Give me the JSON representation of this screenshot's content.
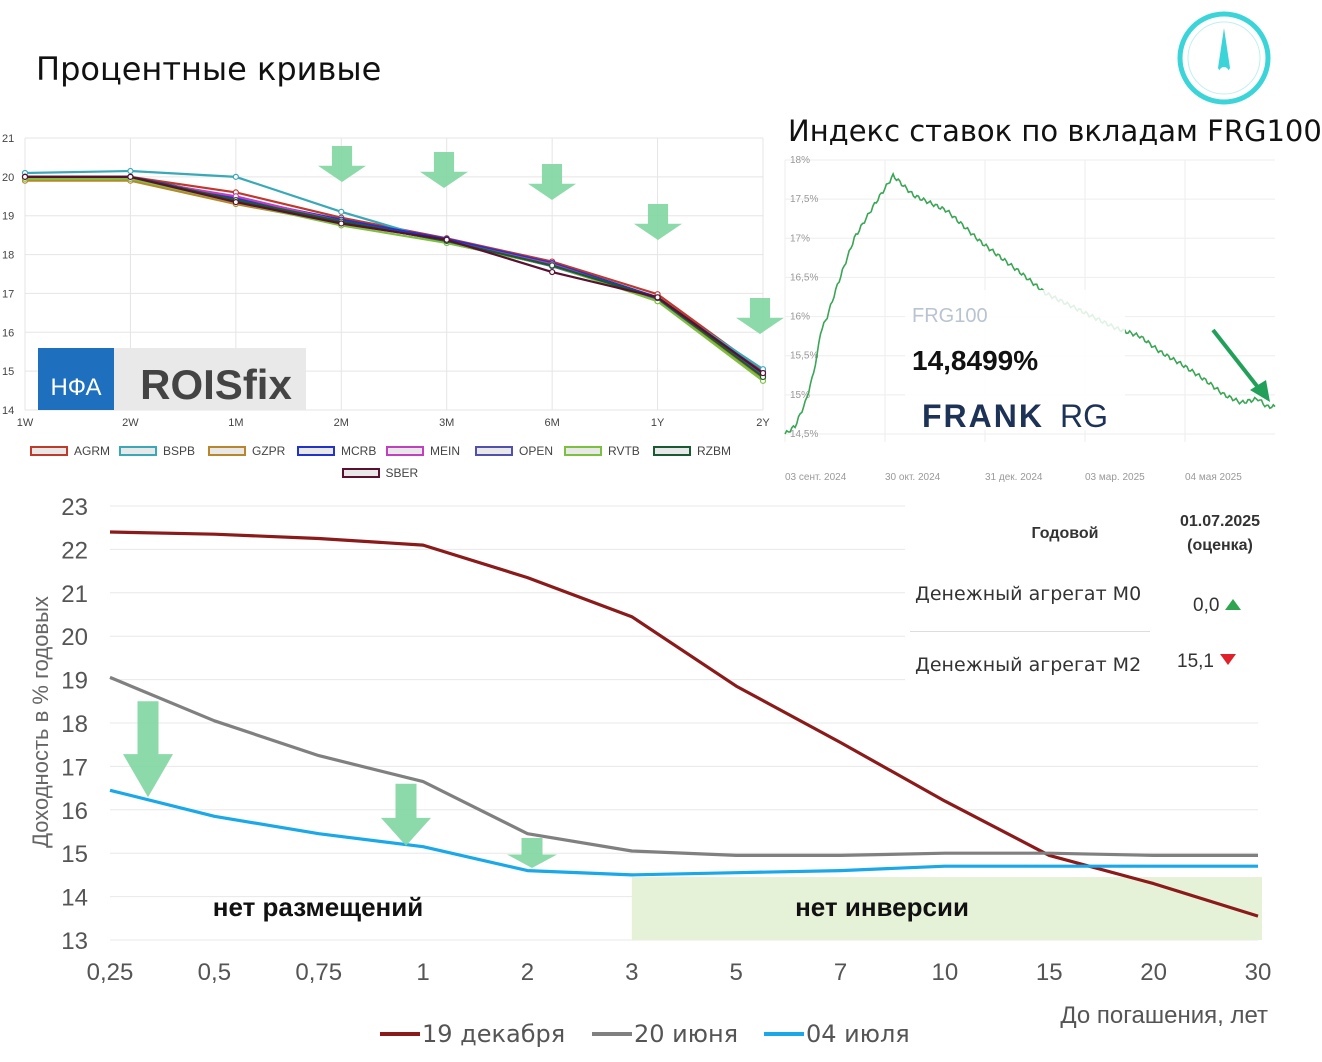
{
  "page_title": "Процентные кривые",
  "colors": {
    "down_arrow": "#7fd6a0",
    "highlight_area": "#e6f2d8",
    "frg_line": "#3aa655",
    "teal_icon": "#3ad4d9"
  },
  "icons": [
    "compass-needle-icon",
    "down-arrow-icon",
    "triangle-up-icon",
    "triangle-down-icon"
  ],
  "chart_data": [
    {
      "type": "line",
      "categories": [
        "1W",
        "2W",
        "1M",
        "2M",
        "3M",
        "6M",
        "1Y",
        "2Y"
      ],
      "ylim": [
        14,
        21
      ],
      "yticks": [
        "14",
        "15",
        "16",
        "17",
        "18",
        "19",
        "20",
        "21"
      ],
      "grid": true,
      "logo": {
        "nfa": "НФА",
        "rois": "ROISfix"
      },
      "series": [
        {
          "name": "AGRM",
          "color": "#c0392b",
          "values": [
            20.0,
            20.0,
            19.6,
            18.95,
            18.42,
            17.82,
            16.98,
            15.0
          ]
        },
        {
          "name": "BSPB",
          "color": "#39a8b8",
          "values": [
            20.1,
            20.15,
            20.0,
            19.1,
            18.3,
            17.72,
            16.85,
            15.05
          ]
        },
        {
          "name": "GZPR",
          "color": "#b8862b",
          "values": [
            19.9,
            19.9,
            19.3,
            18.8,
            18.38,
            17.75,
            16.8,
            14.82
          ]
        },
        {
          "name": "MCRB",
          "color": "#2233cc",
          "values": [
            20.0,
            20.0,
            19.45,
            18.9,
            18.4,
            17.78,
            16.9,
            14.95
          ]
        },
        {
          "name": "MEIN",
          "color": "#c040c0",
          "values": [
            20.0,
            19.95,
            19.5,
            18.85,
            18.35,
            17.75,
            16.85,
            14.9
          ]
        },
        {
          "name": "OPEN",
          "color": "#5050b0",
          "values": [
            20.0,
            20.0,
            19.4,
            18.85,
            18.35,
            17.7,
            16.85,
            14.9
          ]
        },
        {
          "name": "RVTB",
          "color": "#7cc040",
          "values": [
            19.95,
            19.95,
            19.35,
            18.75,
            18.3,
            17.72,
            16.8,
            14.75
          ]
        },
        {
          "name": "RZBM",
          "color": "#1a5a30",
          "values": [
            20.0,
            20.0,
            19.4,
            18.85,
            18.35,
            17.72,
            16.88,
            14.85
          ]
        },
        {
          "name": "SBER",
          "color": "#5a1030",
          "values": [
            20.0,
            20.0,
            19.35,
            18.8,
            18.38,
            17.55,
            16.9,
            14.95
          ]
        }
      ]
    },
    {
      "type": "line",
      "title": "Индекс ставок по вкладам FRG100",
      "series_label": "FRG100",
      "current_value": "14,8499%",
      "brand": {
        "part1": "FRANK",
        "part2": "RG"
      },
      "xticks": [
        "03 сент. 2024",
        "30 окт. 2024",
        "31 дек. 2024",
        "03 мар. 2025",
        "04 мая 2025"
      ],
      "yticks": [
        "14,5%",
        "15%",
        "15,5%",
        "16%",
        "16,5%",
        "17%",
        "17,5%",
        "18%"
      ],
      "ylim": [
        14.5,
        18.0
      ],
      "x_index": [
        0,
        6,
        12,
        16,
        19,
        21,
        25,
        31,
        41,
        52,
        64,
        76,
        86,
        96,
        106,
        116,
        128,
        140,
        154,
        168,
        182,
        196,
        210,
        222,
        234,
        248,
        260,
        270,
        280,
        285,
        290
      ],
      "values": [
        14.5,
        14.6,
        14.9,
        15.2,
        15.5,
        15.8,
        16.0,
        16.4,
        17.0,
        17.4,
        17.8,
        17.55,
        17.45,
        17.35,
        17.15,
        16.95,
        16.75,
        16.55,
        16.3,
        16.15,
        16.0,
        15.85,
        15.75,
        15.55,
        15.4,
        15.2,
        15.0,
        14.9,
        14.95,
        14.85,
        14.85
      ]
    },
    {
      "type": "line",
      "ylabel": "Доходность в % годовых",
      "xlabel": "До погашения, лет",
      "categories": [
        "0,25",
        "0,5",
        "0,75",
        "1",
        "2",
        "3",
        "5",
        "7",
        "10",
        "15",
        "20",
        "30"
      ],
      "yticks": [
        "13",
        "14",
        "15",
        "16",
        "17",
        "18",
        "19",
        "20",
        "21",
        "22",
        "23"
      ],
      "ylim": [
        13,
        23
      ],
      "grid": true,
      "series": [
        {
          "name": "19 декабря",
          "color": "#8b1a1a",
          "values": [
            22.4,
            22.35,
            22.25,
            22.1,
            21.35,
            20.45,
            18.85,
            17.55,
            16.2,
            14.95,
            14.3,
            13.55
          ]
        },
        {
          "name": "20 июня",
          "color": "#808080",
          "values": [
            19.05,
            18.05,
            17.25,
            16.65,
            15.45,
            15.05,
            14.95,
            14.95,
            15.0,
            15.0,
            14.95,
            14.95
          ]
        },
        {
          "name": "04 июля",
          "color": "#1aa8e8",
          "values": [
            16.45,
            15.85,
            15.45,
            15.15,
            14.6,
            14.5,
            14.55,
            14.6,
            14.7,
            14.7,
            14.7,
            14.7
          ]
        }
      ],
      "annotations": {
        "no_placements": "нет размещений",
        "no_inversion": "нет инверсии"
      }
    }
  ],
  "money_table": {
    "col_annual": "Годовой",
    "col_date": "01.07.2025",
    "col_note": "(оценка)",
    "rows": [
      {
        "label": "Денежный агрегат М0",
        "value": "0,0",
        "trend": "up"
      },
      {
        "label": "Денежный агрегат М2",
        "value": "15,1",
        "trend": "down"
      }
    ]
  }
}
